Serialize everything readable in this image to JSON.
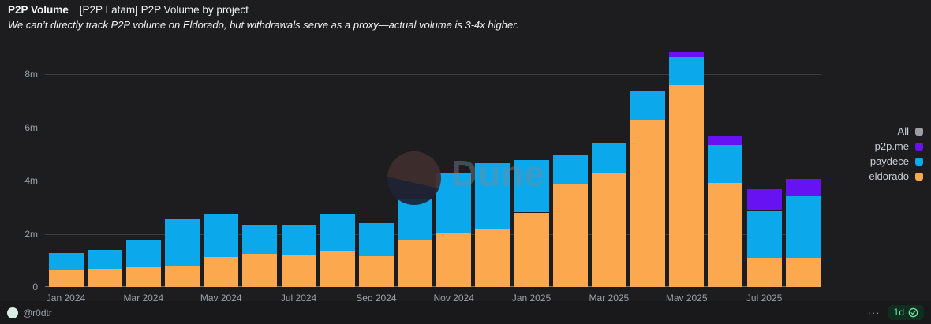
{
  "header": {
    "title": "P2P Volume",
    "subtitle_tag": "[P2P Latam] P2P Volume by project",
    "description": "We can’t directly track P2P volume on Eldorado, but withdrawals serve as a proxy—actual volume is 3-4x higher."
  },
  "watermark": {
    "text": "Dune"
  },
  "legend": [
    {
      "label": "All",
      "color": "#9e9ea2"
    },
    {
      "label": "p2p.me",
      "color": "#6712f3"
    },
    {
      "label": "paydece",
      "color": "#0ba8ec"
    },
    {
      "label": "eldorado",
      "color": "#fca84e"
    }
  ],
  "footer": {
    "username": "@r0dtr",
    "menu_icon": "···",
    "refresh_badge": "1d"
  },
  "chart_data": {
    "type": "bar",
    "stacked": true,
    "unit": "millions",
    "title": "[P2P Latam] P2P Volume by project",
    "xlabel": "",
    "ylabel": "",
    "ylim": [
      0,
      9.1
    ],
    "grid": true,
    "legend_position": "right",
    "categories": [
      "Jan 2024",
      "Feb 2024",
      "Mar 2024",
      "Apr 2024",
      "May 2024",
      "Jun 2024",
      "Jul 2024",
      "Aug 2024",
      "Sep 2024",
      "Oct 2024",
      "Nov 2024",
      "Dec 2024",
      "Jan 2025",
      "Feb 2025",
      "Mar 2025",
      "Apr 2025",
      "May 2025",
      "Jun 2025",
      "Jul 2025",
      "Aug 2025"
    ],
    "x_tick_labels": [
      "Jan 2024",
      "Mar 2024",
      "May 2024",
      "Jul 2024",
      "Sep 2024",
      "Nov 2024",
      "Jan 2025",
      "Mar 2025",
      "May 2025",
      "Jul 2025"
    ],
    "y_ticks": [
      "0",
      "2m",
      "4m",
      "6m",
      "8m"
    ],
    "y_tick_values": [
      0,
      2,
      4,
      6,
      8
    ],
    "series": [
      {
        "name": "eldorado",
        "color": "#fca84e",
        "values": [
          0.65,
          0.67,
          0.73,
          0.77,
          1.12,
          1.24,
          1.18,
          1.35,
          1.17,
          1.76,
          2.03,
          2.15,
          2.8,
          3.87,
          4.3,
          6.29,
          7.59,
          3.9,
          1.09,
          1.09
        ]
      },
      {
        "name": "paydece",
        "color": "#0ba8ec",
        "values": [
          0.64,
          0.72,
          1.04,
          1.78,
          1.64,
          1.11,
          1.12,
          1.4,
          1.23,
          1.55,
          2.27,
          2.5,
          1.96,
          1.11,
          1.13,
          1.1,
          1.06,
          1.43,
          1.77,
          2.35
        ]
      },
      {
        "name": "p2p.me",
        "color": "#6712f3",
        "values": [
          0,
          0,
          0,
          0,
          0,
          0,
          0,
          0,
          0,
          0,
          0,
          0,
          0,
          0,
          0,
          0,
          0.17,
          0.32,
          0.82,
          0.63
        ]
      }
    ]
  }
}
